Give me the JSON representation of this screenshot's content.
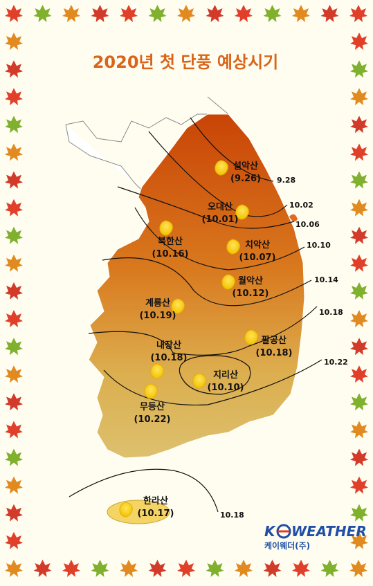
{
  "title": "2020년 첫 단풍 예상시기",
  "mountains": [
    {
      "name": "설악산",
      "date": "(9.26)"
    },
    {
      "name": "오대산",
      "date": "(10.01)"
    },
    {
      "name": "북한산",
      "date": "(10.16)"
    },
    {
      "name": "치악산",
      "date": "(10.07)"
    },
    {
      "name": "월악산",
      "date": "(10.12)"
    },
    {
      "name": "계룡산",
      "date": "(10.19)"
    },
    {
      "name": "팔공산",
      "date": "(10.18)"
    },
    {
      "name": "내장산",
      "date": "(10.18)"
    },
    {
      "name": "지리산",
      "date": "(10.10)"
    },
    {
      "name": "무등산",
      "date": "(10.22)"
    },
    {
      "name": "한라산",
      "date": "(10.17)"
    }
  ],
  "isolines": [
    "9.28",
    "10.02",
    "10.06",
    "10.10",
    "10.14",
    "10.18",
    "10.22",
    "10.18"
  ],
  "logo": {
    "left": "K",
    "right": "WEATHER",
    "company": "케이웨더(주)"
  }
}
